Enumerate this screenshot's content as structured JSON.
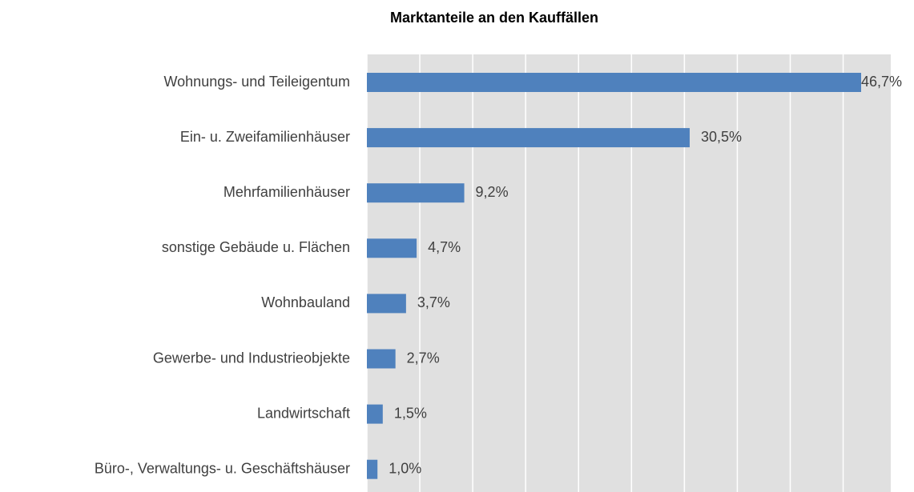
{
  "chart_data": {
    "type": "bar",
    "orientation": "horizontal",
    "title": "Marktanteile an den Kauffällen",
    "categories": [
      "Wohnungs- und Teileigentum",
      "Ein- u. Zweifamilienhäuser",
      "Mehrfamilienhäuser",
      "sonstige Gebäude u. Flächen",
      "Wohnbauland",
      "Gewerbe- und Industrieobjekte",
      "Landwirtschaft",
      "Büro-, Verwaltungs- u. Geschäftshäuser"
    ],
    "values": [
      46.7,
      30.5,
      9.2,
      4.7,
      3.7,
      2.7,
      1.5,
      1.0
    ],
    "value_labels": [
      "46,7%",
      "30,5%",
      "9,2%",
      "4,7%",
      "3,7%",
      "2,7%",
      "1,5%",
      "1,0%"
    ],
    "color": "#4f81bd",
    "xlim": [
      0,
      49.5
    ],
    "xticks": [
      0,
      5,
      10,
      15,
      20,
      25,
      30,
      35,
      40,
      45
    ],
    "grid": true
  }
}
